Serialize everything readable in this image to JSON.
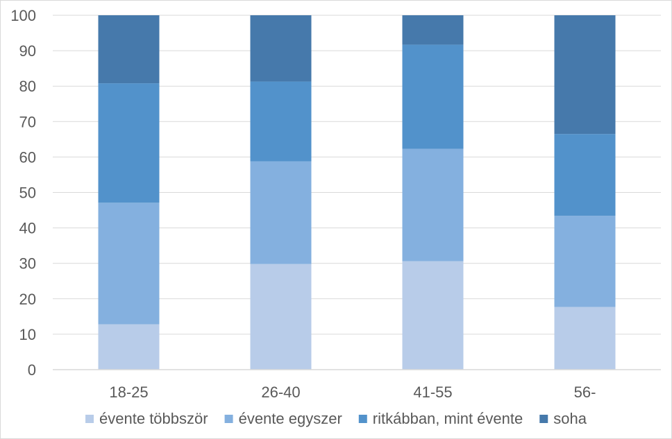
{
  "chart_data": {
    "type": "bar",
    "stacked": true,
    "title": "",
    "xlabel": "",
    "ylabel": "",
    "ylim": [
      0,
      100
    ],
    "yticks": [
      0,
      10,
      20,
      30,
      40,
      50,
      60,
      70,
      80,
      90,
      100
    ],
    "grid": true,
    "legend": "bottom",
    "categories": [
      "18-25",
      "26-40",
      "41-55",
      "56-"
    ],
    "series": [
      {
        "name": "évente többször",
        "color": "#b8cce9",
        "values": [
          12.8,
          29.8,
          30.6,
          17.7
        ]
      },
      {
        "name": "évente egyszer",
        "color": "#84b0df",
        "values": [
          34.3,
          29.0,
          31.7,
          25.7
        ]
      },
      {
        "name": "ritkábban, mint évente",
        "color": "#5292cb",
        "values": [
          33.7,
          22.5,
          29.4,
          23.1
        ]
      },
      {
        "name": "soha",
        "color": "#4679ab",
        "values": [
          19.2,
          18.7,
          8.3,
          33.5
        ]
      }
    ]
  }
}
